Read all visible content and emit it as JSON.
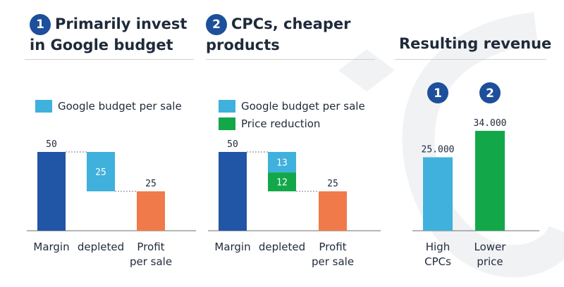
{
  "colors": {
    "margin": "#2155a6",
    "depleted": "#40b0dc",
    "price_reduction": "#12a84a",
    "profit": "#f07a4a",
    "badge": "#1d4f9a",
    "revenue_high": "#40b0dc",
    "revenue_lower": "#12a84a"
  },
  "panel1": {
    "badge": "1",
    "title_line1": "Primarily invest",
    "title_line2": "in Google budget",
    "legend": [
      {
        "label": "Google budget per sale",
        "color_key": "depleted"
      }
    ]
  },
  "panel2": {
    "badge": "2",
    "title_line1": "CPCs, cheaper",
    "title_line2": "products",
    "legend": [
      {
        "label": "Google budget per sale",
        "color_key": "depleted"
      },
      {
        "label": "Price reduction",
        "color_key": "price_reduction"
      }
    ]
  },
  "panel3": {
    "title": "Resulting revenue"
  },
  "chart_data": [
    {
      "type": "bar",
      "title": "Primarily invest in Google budget",
      "categories": [
        [
          "Margin"
        ],
        [
          "depleted"
        ],
        [
          "Profit",
          "per sale"
        ]
      ],
      "segments": [
        {
          "category": 0,
          "base": 0,
          "value": 50,
          "color_key": "margin",
          "label": "50",
          "label_pos": "above"
        },
        {
          "category": 1,
          "base": 25,
          "value": 25,
          "color_key": "depleted",
          "label": "25",
          "label_pos": "inside"
        },
        {
          "category": 2,
          "base": 0,
          "value": 25,
          "color_key": "profit",
          "label": "25",
          "label_pos": "above"
        }
      ],
      "ylim": [
        0,
        50
      ]
    },
    {
      "type": "bar",
      "title": "CPCs, cheaper products",
      "categories": [
        [
          "Margin"
        ],
        [
          "depleted"
        ],
        [
          "Profit",
          "per sale"
        ]
      ],
      "segments": [
        {
          "category": 0,
          "base": 0,
          "value": 50,
          "color_key": "margin",
          "label": "50",
          "label_pos": "above"
        },
        {
          "category": 1,
          "base": 37,
          "value": 13,
          "color_key": "depleted",
          "label": "13",
          "label_pos": "inside"
        },
        {
          "category": 1,
          "base": 25,
          "value": 12,
          "color_key": "price_reduction",
          "label": "12",
          "label_pos": "inside"
        },
        {
          "category": 2,
          "base": 0,
          "value": 25,
          "color_key": "profit",
          "label": "25",
          "label_pos": "above"
        }
      ],
      "ylim": [
        0,
        50
      ]
    },
    {
      "type": "bar",
      "title": "Resulting revenue",
      "categories": [
        [
          "High",
          "CPCs"
        ],
        [
          "Lower",
          "price"
        ]
      ],
      "badges": [
        "1",
        "2"
      ],
      "segments": [
        {
          "category": 0,
          "base": 0,
          "value": 25000,
          "color_key": "revenue_high",
          "label": "25.000",
          "label_pos": "above"
        },
        {
          "category": 1,
          "base": 0,
          "value": 34000,
          "color_key": "revenue_lower",
          "label": "34.000",
          "label_pos": "above"
        }
      ],
      "ylim": [
        0,
        34000
      ]
    }
  ]
}
